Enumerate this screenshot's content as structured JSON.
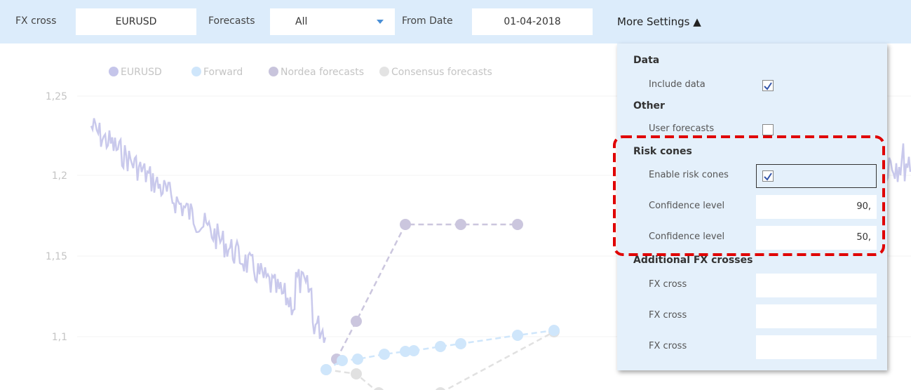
{
  "toolbar": {
    "fx_cross_label": "FX cross",
    "fx_cross_value": "EURUSD",
    "forecasts_label": "Forecasts",
    "forecasts_value": "All",
    "from_date_label": "From Date",
    "from_date_value": "01-04-2018",
    "more_settings": "More Settings ▲"
  },
  "chart": {
    "legend": [
      "EURUSD",
      "Forward",
      "Nordea forecasts",
      "Consensus forecasts"
    ],
    "yticks": [
      "1,25",
      "1,2",
      "1,15",
      "1,1"
    ]
  },
  "settings": {
    "sections": [
      {
        "title": "Data",
        "rows": [
          {
            "label": "Include data",
            "checked": true
          }
        ]
      },
      {
        "title": "Other",
        "rows": [
          {
            "label": "User forecasts",
            "checked": false
          }
        ]
      },
      {
        "title": "Risk cones",
        "rows": [
          {
            "label": "Enable risk cones",
            "checked": true
          },
          {
            "label": "Confidence level",
            "value": "90,"
          },
          {
            "label": "Confidence level",
            "value": "50,"
          }
        ]
      },
      {
        "title": "Additional FX crosses",
        "rows": [
          {
            "label": "FX cross"
          },
          {
            "label": "FX cross"
          },
          {
            "label": "FX cross"
          }
        ]
      }
    ]
  }
}
